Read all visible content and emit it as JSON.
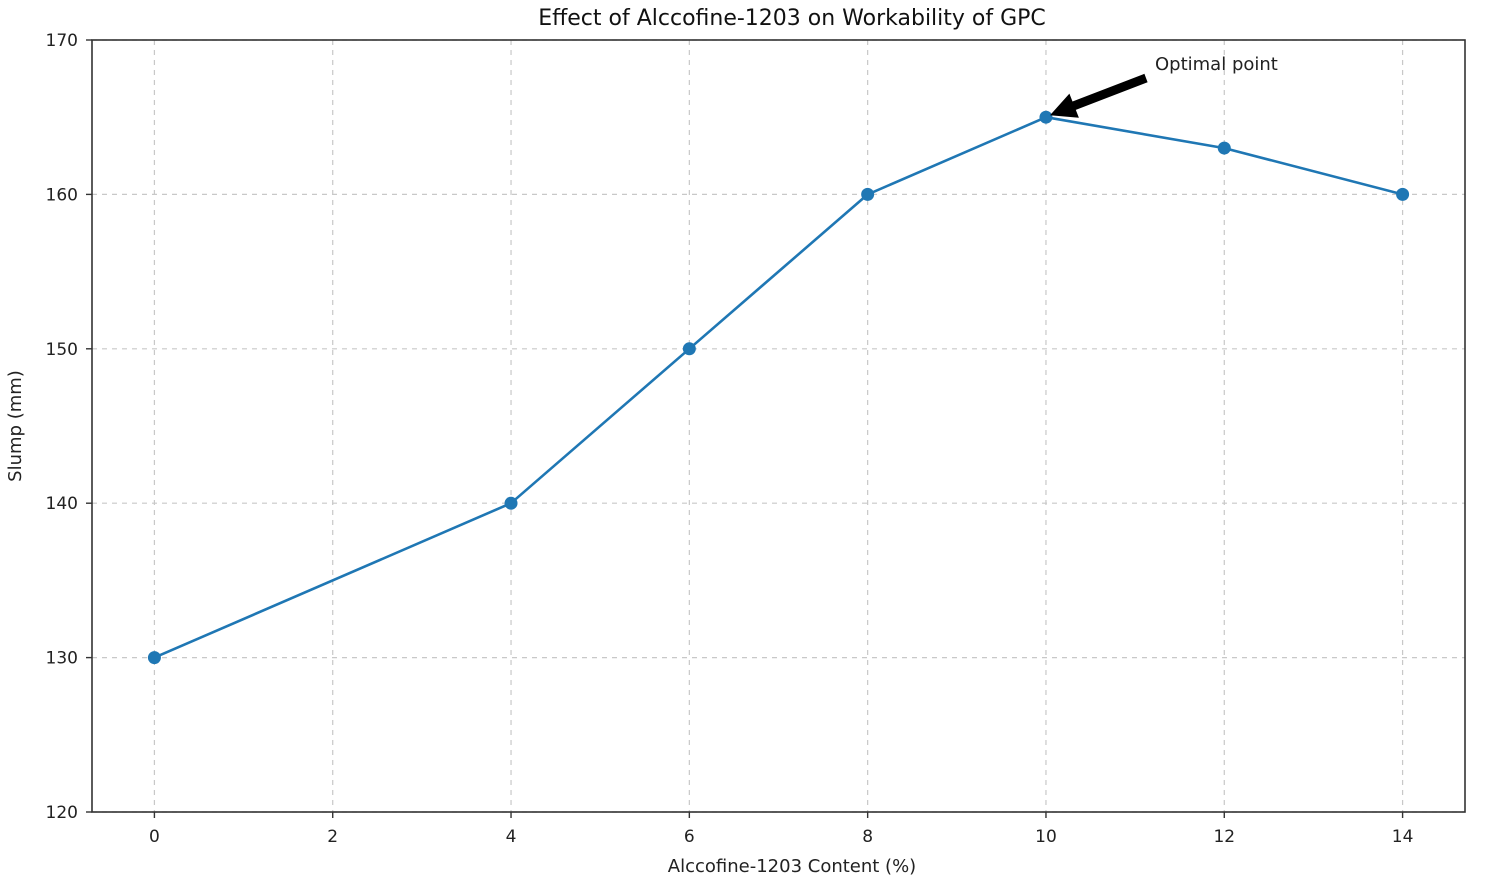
{
  "chart_data": {
    "type": "line",
    "title": "Effect of Alccofine-1203 on Workability of GPC",
    "xlabel": "Alccofine-1203 Content (%)",
    "ylabel": "Slump (mm)",
    "x": [
      0,
      4,
      6,
      8,
      10,
      12,
      14
    ],
    "series": [
      {
        "name": "Slump",
        "values": [
          130,
          140,
          150,
          160,
          165,
          163,
          160
        ],
        "color": "#1f77b4",
        "marker": "circle"
      }
    ],
    "xlim": [
      -0.7,
      14.7
    ],
    "ylim": [
      120,
      170
    ],
    "xticks": [
      0,
      2,
      4,
      6,
      8,
      10,
      12,
      14
    ],
    "yticks": [
      120,
      130,
      140,
      150,
      160,
      170
    ],
    "grid": true,
    "grid_style": "dashed",
    "legend": null,
    "annotations": [
      {
        "text": "Optimal point",
        "x": 10,
        "y": 165,
        "arrow": true
      }
    ]
  },
  "labels": {
    "title": "Effect of Alccofine-1203 on Workability of GPC",
    "xlabel": "Alccofine-1203 Content (%)",
    "ylabel": "Slump (mm)",
    "annotation": "Optimal point"
  }
}
